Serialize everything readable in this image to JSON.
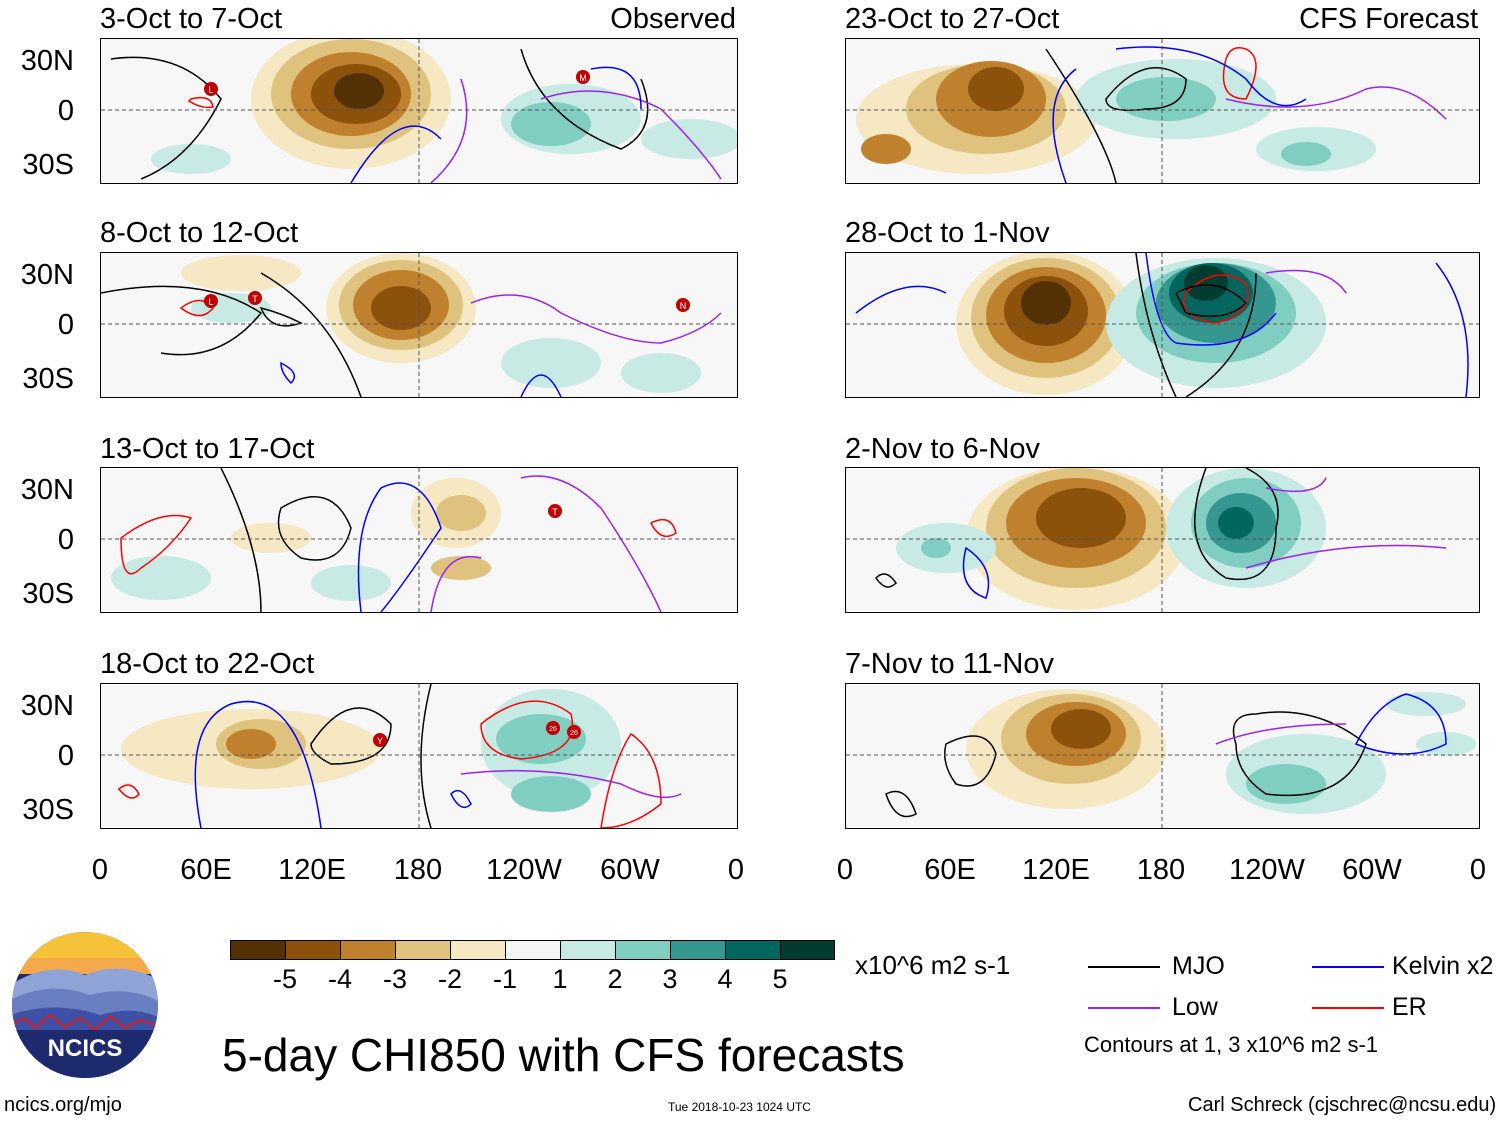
{
  "panels": [
    {
      "id": "p1",
      "title": "3-Oct to 7-Oct",
      "tag": "Observed"
    },
    {
      "id": "p2",
      "title": "8-Oct to 12-Oct",
      "tag": ""
    },
    {
      "id": "p3",
      "title": "13-Oct to 17-Oct",
      "tag": ""
    },
    {
      "id": "p4",
      "title": "18-Oct to 22-Oct",
      "tag": ""
    },
    {
      "id": "p5",
      "title": "23-Oct to 27-Oct",
      "tag": "CFS Forecast"
    },
    {
      "id": "p6",
      "title": "28-Oct to 1-Nov",
      "tag": ""
    },
    {
      "id": "p7",
      "title": "2-Nov to 6-Nov",
      "tag": ""
    },
    {
      "id": "p8",
      "title": "7-Nov to 11-Nov",
      "tag": ""
    }
  ],
  "y_axis_labels": [
    "30N",
    "0",
    "30S"
  ],
  "x_axis_labels": [
    "0",
    "60E",
    "120E",
    "180",
    "120W",
    "60W",
    "0"
  ],
  "colorbar": {
    "colors": [
      "#543005",
      "#8c510a",
      "#bf812d",
      "#dfc27d",
      "#f6e8c3",
      "#f5f5f5",
      "#c7eae5",
      "#80cdc1",
      "#35978f",
      "#01665e",
      "#003c30"
    ],
    "labels": [
      "-5",
      "-4",
      "-3",
      "-2",
      "-1",
      "1",
      "2",
      "3",
      "4",
      "5"
    ],
    "units": "x10^6 m2 s-1"
  },
  "legend": {
    "mjo": "MJO",
    "kelvin": "Kelvin x2",
    "low": "Low",
    "er": "ER",
    "contours_note": "Contours at 1, 3 x10^6 m2 s-1",
    "colors": {
      "mjo": "#000000",
      "kelvin": "#0000ff",
      "low": "#a020f0",
      "er": "#ff0000"
    }
  },
  "storm_markers": {
    "p1": [
      "L",
      "M"
    ],
    "p2": [
      "L",
      "T",
      "N"
    ],
    "p3": [
      "T"
    ],
    "p4": [
      "Y",
      "26",
      "26"
    ]
  },
  "logo": {
    "text": "NCICS"
  },
  "main_title": "5-day CHI850 with CFS forecasts",
  "footer": {
    "url": "ncics.org/mjo",
    "timestamp": "Tue 2018-10-23 1024 UTC",
    "credit": "Carl Schreck (cjschrec@ncsu.edu)"
  }
}
